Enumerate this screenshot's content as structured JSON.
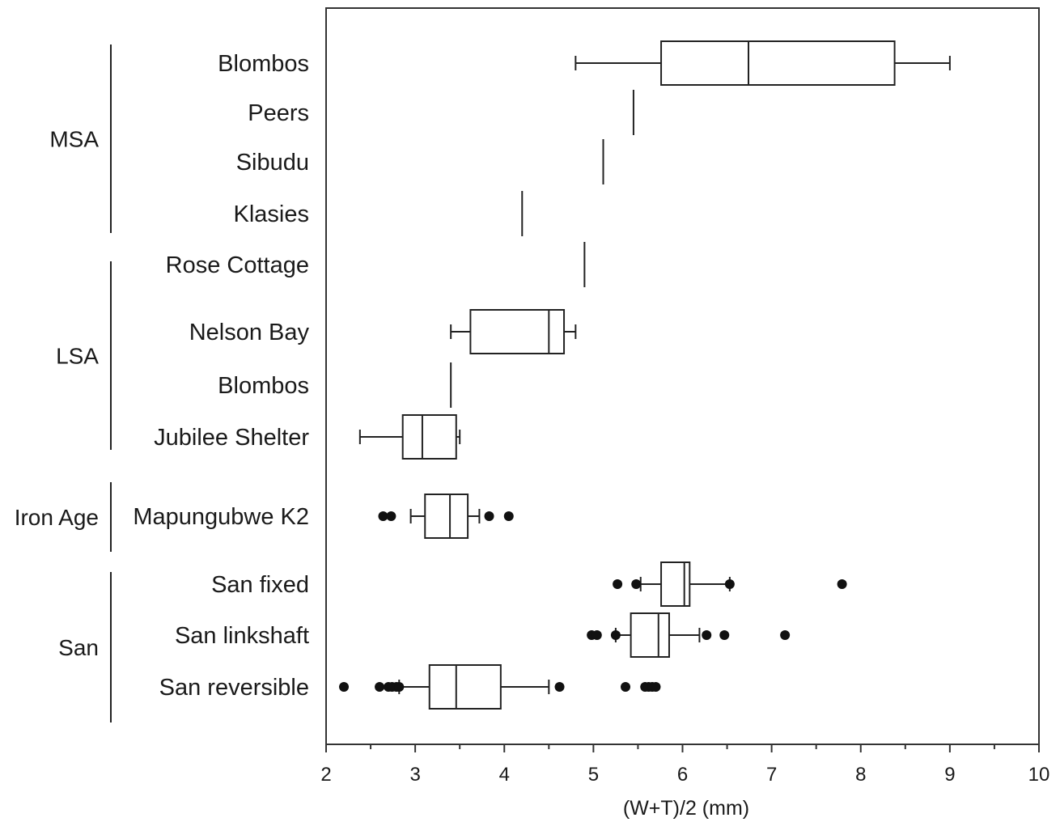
{
  "chart_data": {
    "type": "boxplot",
    "title": "",
    "xlabel": "(W+T)/2 (mm)",
    "xlim": [
      2,
      10
    ],
    "xticks": [
      "2",
      "3",
      "4",
      "5",
      "6",
      "7",
      "8",
      "9",
      "10"
    ],
    "grid": false,
    "groups": [
      {
        "name": "MSA",
        "categories": [
          "Blombos",
          "Peers",
          "Sibudu",
          "Klasies"
        ]
      },
      {
        "name": "LSA",
        "categories": [
          "Rose Cottage",
          "Nelson Bay",
          "Blombos",
          "Jubilee Shelter"
        ]
      },
      {
        "name": "Iron Age",
        "categories": [
          "Mapungubwe K2"
        ]
      },
      {
        "name": "San",
        "categories": [
          "San fixed",
          "San linkshaft",
          "San reversible"
        ]
      }
    ],
    "boxes": [
      {
        "label": "Blombos",
        "whisker_low": 4.8,
        "q1": 5.76,
        "median": 6.74,
        "q3": 8.38,
        "whisker_high": 9.0,
        "outliers": []
      },
      {
        "label": "Peers",
        "value": 5.45,
        "outliers": []
      },
      {
        "label": "Sibudu",
        "value": 5.11,
        "outliers": []
      },
      {
        "label": "Klasies",
        "value": 4.2,
        "outliers": []
      },
      {
        "label": "Rose Cottage",
        "value": 4.9,
        "outliers": []
      },
      {
        "label": "Nelson Bay",
        "whisker_low": 3.4,
        "q1": 3.62,
        "median": 4.5,
        "q3": 4.67,
        "whisker_high": 4.8,
        "outliers": []
      },
      {
        "label": "Blombos",
        "value": 3.4,
        "outliers": []
      },
      {
        "label": "Jubilee Shelter",
        "whisker_low": 2.38,
        "q1": 2.86,
        "median": 3.08,
        "q3": 3.46,
        "whisker_high": 3.5,
        "outliers": []
      },
      {
        "label": "Mapungubwe K2",
        "whisker_low": 2.95,
        "q1": 3.11,
        "median": 3.39,
        "q3": 3.59,
        "whisker_high": 3.72,
        "outliers": [
          2.64,
          2.73,
          3.83,
          4.05
        ]
      },
      {
        "label": "San fixed",
        "whisker_low": 5.53,
        "q1": 5.76,
        "median": 6.02,
        "q3": 6.08,
        "whisker_high": 6.53,
        "outliers": [
          5.27,
          5.48,
          6.53,
          7.79
        ]
      },
      {
        "label": "San linkshaft",
        "whisker_low": 5.25,
        "q1": 5.42,
        "median": 5.73,
        "q3": 5.85,
        "whisker_high": 6.19,
        "outliers": [
          4.98,
          5.04,
          5.25,
          6.27,
          6.47,
          7.15
        ]
      },
      {
        "label": "San reversible",
        "whisker_low": 2.82,
        "q1": 3.16,
        "median": 3.46,
        "q3": 3.96,
        "whisker_high": 4.5,
        "outliers": [
          2.2,
          2.6,
          2.7,
          2.74,
          2.79,
          2.82,
          4.62,
          5.36,
          5.58,
          5.62,
          5.66,
          5.7
        ]
      }
    ]
  }
}
